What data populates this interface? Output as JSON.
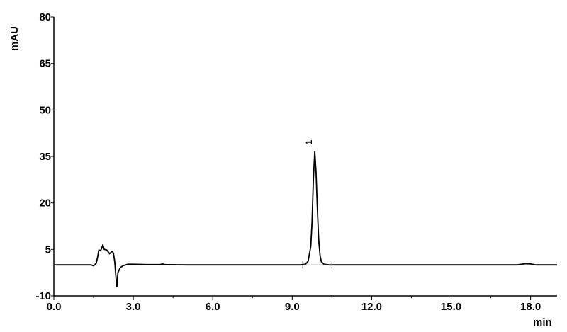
{
  "chart_data": {
    "type": "line",
    "title": "",
    "xlabel": "min",
    "ylabel": "mAU",
    "xlim": [
      0,
      19.0
    ],
    "ylim": [
      -10,
      80
    ],
    "x_ticks": [
      "0.0",
      "3.0",
      "6.0",
      "9.0",
      "12.0",
      "15.0",
      "18.0"
    ],
    "x_tick_values": [
      0,
      3,
      6,
      9,
      12,
      15,
      18
    ],
    "y_ticks": [
      "-10",
      "5",
      "20",
      "35",
      "50",
      "65",
      "80"
    ],
    "y_tick_values": [
      -10,
      5,
      20,
      35,
      50,
      65,
      80
    ],
    "grid": false,
    "line_color": "#000000",
    "peaks": [
      {
        "label": "1",
        "retention_time": 9.85,
        "height": 36.5
      }
    ],
    "baseline_markers": [
      9.4,
      10.5
    ],
    "series": [
      {
        "x": [
          0,
          1.4,
          1.5,
          1.6,
          1.65,
          1.7,
          1.75,
          1.8,
          1.85,
          1.9,
          2.0,
          2.05,
          2.1,
          2.15,
          2.2,
          2.25,
          2.3,
          2.35,
          2.38,
          2.42,
          2.5,
          2.6,
          2.8,
          3.0,
          3.5,
          4.0,
          4.1,
          4.2,
          5.0,
          8.0,
          9.3,
          9.5,
          9.6,
          9.7,
          9.75,
          9.8,
          9.85,
          9.9,
          9.95,
          10.0,
          10.05,
          10.1,
          10.2,
          10.4,
          12.0,
          17.5,
          17.8,
          18.0,
          18.2,
          19.0
        ],
        "y": [
          0,
          0,
          -0.3,
          0.5,
          2.5,
          4.8,
          4.6,
          5.2,
          6.5,
          5.0,
          4.8,
          4.2,
          3.6,
          4.0,
          4.4,
          3.8,
          1.0,
          -4.5,
          -7.0,
          -2.5,
          -1.0,
          -0.3,
          0.2,
          0.2,
          0.1,
          0.1,
          0.3,
          0.1,
          0,
          0,
          0,
          0.2,
          1.2,
          6,
          14,
          28,
          36.5,
          30,
          18,
          8,
          3,
          1,
          0.2,
          0,
          0,
          0,
          0.4,
          0.3,
          0,
          0
        ]
      }
    ]
  }
}
